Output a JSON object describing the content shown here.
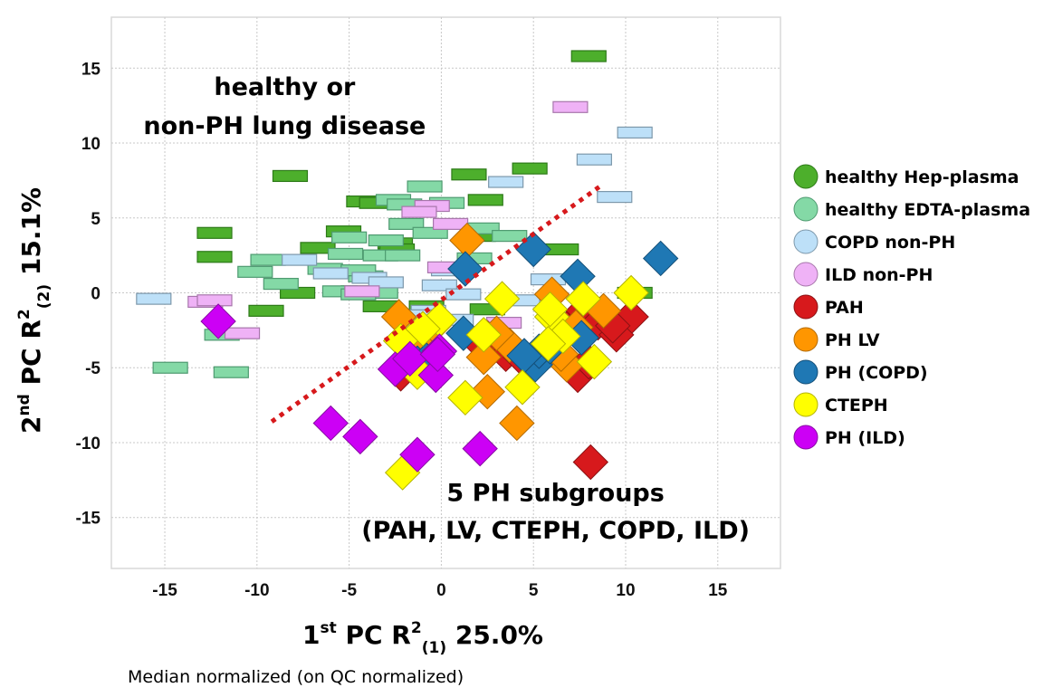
{
  "chart_data": {
    "type": "scatter",
    "title": "",
    "xlabel": {
      "prefix": "1",
      "sup": "st",
      "mid": " PC R",
      "sup2": "2",
      "sub": "(1)",
      "suffix": " 25.0%"
    },
    "ylabel": {
      "prefix": "2",
      "sup": "nd",
      "mid": " PC R",
      "sup2": "2",
      "sub": "(2)",
      "suffix": " 15.1%"
    },
    "xlim": [
      -17.9,
      18.4
    ],
    "ylim": [
      -18.4,
      18.4
    ],
    "xticks": [
      -15,
      -10,
      -5,
      0,
      5,
      10,
      15
    ],
    "yticks": [
      -15,
      -10,
      -5,
      0,
      5,
      10,
      15
    ],
    "grid": true,
    "legend_position": "right",
    "annotations": [
      {
        "text": "healthy or",
        "x": -8.5,
        "y": 13.2
      },
      {
        "text": "non-PH lung disease",
        "x": -8.5,
        "y": 10.6
      },
      {
        "text": "5 PH subgroups",
        "x": 6.2,
        "y": -13.9
      },
      {
        "text": "(PAH, LV, CTEPH, COPD, ILD)",
        "x": 6.2,
        "y": -16.4
      }
    ],
    "separator_line": {
      "style": "dotted",
      "color": "#d7191c",
      "from": [
        -9.2,
        -8.6
      ],
      "to": [
        8.6,
        7.1
      ]
    },
    "series": [
      {
        "name": "healthy Hep-plasma",
        "marker": "rect",
        "color": "#4daf2c",
        "edge": "#2d7a18",
        "points": [
          [
            8,
            15.8
          ],
          [
            -8.2,
            7.8
          ],
          [
            1.5,
            7.9
          ],
          [
            4.8,
            8.3
          ],
          [
            -4.2,
            6.1
          ],
          [
            -3.5,
            6
          ],
          [
            2.4,
            6.2
          ],
          [
            -12.3,
            4
          ],
          [
            -12.3,
            2.4
          ],
          [
            -5.3,
            4.1
          ],
          [
            -2.5,
            3.3
          ],
          [
            -6.7,
            3
          ],
          [
            6.5,
            2.9
          ],
          [
            -9.5,
            -1.2
          ],
          [
            -3.3,
            -0.9
          ],
          [
            -0.8,
            -0.9
          ],
          [
            2.5,
            -1.1
          ],
          [
            -7.8,
            0
          ],
          [
            -4.5,
            0.1
          ],
          [
            10.5,
            0
          ],
          [
            2,
            3.8
          ],
          [
            -2.4,
            2.9
          ]
        ]
      },
      {
        "name": "healthy EDTA-plasma",
        "marker": "rect",
        "color": "#84d9a6",
        "edge": "#4e9a70",
        "points": [
          [
            -0.9,
            7.1
          ],
          [
            -2.6,
            6.2
          ],
          [
            -2,
            5.9
          ],
          [
            -1.9,
            4.6
          ],
          [
            2.2,
            4.3
          ],
          [
            -5,
            3.7
          ],
          [
            -3,
            3.5
          ],
          [
            -6.3,
            1.6
          ],
          [
            -8.7,
            0.6
          ],
          [
            -4.1,
            1.1
          ],
          [
            -0.6,
            4
          ],
          [
            -5.2,
            2.6
          ],
          [
            -3.3,
            2.5
          ],
          [
            -2.1,
            2.5
          ],
          [
            3.7,
            3.8
          ],
          [
            -10.1,
            1.4
          ],
          [
            -5.5,
            0.1
          ],
          [
            -3.3,
            0
          ],
          [
            -4.5,
            -0.1
          ],
          [
            -11.9,
            -2.8
          ],
          [
            -14.7,
            -5
          ],
          [
            -11.4,
            -5.3
          ],
          [
            -9.4,
            2.2
          ],
          [
            0.3,
            6
          ],
          [
            1.8,
            2.3
          ],
          [
            -4.5,
            1.5
          ]
        ]
      },
      {
        "name": "COPD non-PH",
        "marker": "rect",
        "color": "#bde0f8",
        "edge": "#7d98ab",
        "points": [
          [
            10.5,
            10.7
          ],
          [
            8.3,
            8.9
          ],
          [
            3.5,
            7.4
          ],
          [
            9.4,
            6.4
          ],
          [
            -15.6,
            -0.4
          ],
          [
            -3.9,
            1
          ],
          [
            -7.7,
            2.2
          ],
          [
            -6,
            1.3
          ],
          [
            0.4,
            1.5
          ],
          [
            -0.1,
            0.5
          ],
          [
            1.2,
            -0.1
          ],
          [
            5.8,
            0.9
          ],
          [
            -0.7,
            -1.2
          ],
          [
            4.4,
            -0.5
          ],
          [
            -3,
            0.7
          ],
          [
            -1.4,
            -1.5
          ],
          [
            0.8,
            -1.8
          ]
        ]
      },
      {
        "name": "ILD non-PH",
        "marker": "rect",
        "color": "#efb2f6",
        "edge": "#a776ab",
        "points": [
          [
            7,
            12.4
          ],
          [
            -0.5,
            5.8
          ],
          [
            -1.2,
            5.4
          ],
          [
            0.5,
            4.6
          ],
          [
            -12.8,
            -0.6
          ],
          [
            -10.8,
            -2.7
          ],
          [
            -4.3,
            0.1
          ],
          [
            0.2,
            1.7
          ],
          [
            3.4,
            -2
          ],
          [
            -12.3,
            -0.5
          ]
        ]
      },
      {
        "name": "PAH",
        "marker": "diamond",
        "color": "#d7191c",
        "edge": "#8c1214",
        "points": [
          [
            8.1,
            -11.3
          ],
          [
            -2.2,
            -5.4
          ],
          [
            7.7,
            -1.2
          ],
          [
            8.5,
            -2
          ],
          [
            10.3,
            -1.6
          ],
          [
            9.5,
            -2.8
          ],
          [
            7.4,
            -5.5
          ],
          [
            8,
            -4.6
          ],
          [
            3.5,
            -4.1
          ],
          [
            2.5,
            -3
          ],
          [
            4.3,
            -4.3
          ],
          [
            6.8,
            -2.4
          ],
          [
            9.3,
            -2.2
          ],
          [
            2.2,
            -3.5
          ]
        ]
      },
      {
        "name": "PH LV",
        "marker": "diamond",
        "color": "#ff9600",
        "edge": "#b36a00",
        "points": [
          [
            1.4,
            3.5
          ],
          [
            -2.3,
            -1.6
          ],
          [
            6,
            -0.1
          ],
          [
            8.8,
            -1.2
          ],
          [
            -0.8,
            -3.4
          ],
          [
            2.3,
            -4.3
          ],
          [
            3.7,
            -3.5
          ],
          [
            2.5,
            -6.6
          ],
          [
            4.1,
            -8.7
          ],
          [
            6.8,
            -4.8
          ],
          [
            7.3,
            -2.3
          ],
          [
            -0.4,
            -2.2
          ],
          [
            3,
            -2.7
          ],
          [
            6.5,
            -4.1
          ]
        ]
      },
      {
        "name": "PH (COPD)",
        "marker": "diamond",
        "color": "#1f78b4",
        "edge": "#144f78",
        "points": [
          [
            11.9,
            2.3
          ],
          [
            5,
            2.9
          ],
          [
            1.3,
            1.6
          ],
          [
            7.4,
            1.1
          ],
          [
            1.2,
            -2.7
          ],
          [
            -1.3,
            -4.7
          ],
          [
            5.1,
            -4.8
          ],
          [
            7.6,
            -3
          ],
          [
            5.3,
            -3.9
          ],
          [
            4.5,
            -4.2
          ],
          [
            -0.8,
            -4.5
          ],
          [
            5.9,
            -3.6
          ]
        ]
      },
      {
        "name": "CTEPH",
        "marker": "diamond",
        "color": "#ffff00",
        "edge": "#b3b300",
        "points": [
          [
            10.3,
            0
          ],
          [
            3.3,
            -0.4
          ],
          [
            6,
            -1.6
          ],
          [
            -0.1,
            -1.8
          ],
          [
            -2.2,
            -3.2
          ],
          [
            -1,
            -2.4
          ],
          [
            2.3,
            -2.8
          ],
          [
            1.3,
            -7
          ],
          [
            4.4,
            -6.3
          ],
          [
            -2.1,
            -12
          ],
          [
            5.9,
            -1.1
          ],
          [
            6.6,
            -2.9
          ],
          [
            8.3,
            -4.6
          ],
          [
            5.8,
            -3.4
          ],
          [
            7.7,
            -0.4
          ],
          [
            -1.3,
            -5.3
          ]
        ]
      },
      {
        "name": "PH (ILD)",
        "marker": "diamond",
        "color": "#cc00f5",
        "edge": "#870aa3",
        "points": [
          [
            -12.1,
            -1.9
          ],
          [
            -6,
            -8.7
          ],
          [
            -4.4,
            -9.6
          ],
          [
            -1.3,
            -10.8
          ],
          [
            2.1,
            -10.4
          ],
          [
            -2.5,
            -5.1
          ],
          [
            -1.7,
            -4.4
          ],
          [
            -0.1,
            -3.9
          ],
          [
            -0.3,
            -5.5
          ],
          [
            -0.2,
            -4.1
          ]
        ]
      }
    ]
  },
  "footer": {
    "note": "Median normalized (on QC normalized)"
  }
}
